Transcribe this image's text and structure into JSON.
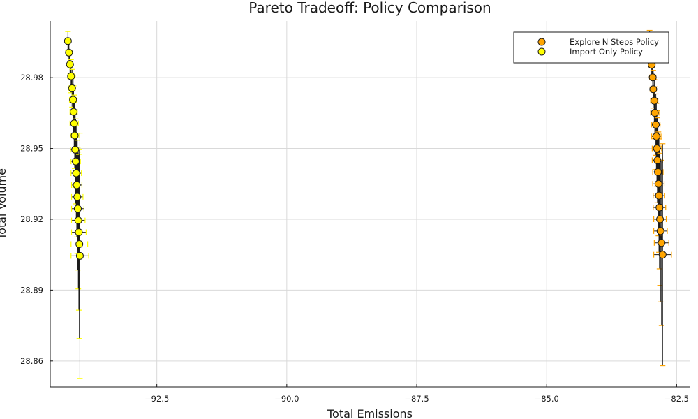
{
  "chart_data": {
    "type": "scatter",
    "title": "Pareto Tradeoff: Policy Comparison",
    "xlabel": "Total Emissions",
    "ylabel": "Total Volume",
    "xlim": [
      -94.55,
      -82.25
    ],
    "ylim": [
      28.849,
      29.004
    ],
    "xticks": [
      -92.5,
      -90.0,
      -87.5,
      -85.0,
      -82.5
    ],
    "xtick_labels": [
      "−92.5",
      "−90.0",
      "−87.5",
      "−85.0",
      "−82.5"
    ],
    "yticks": [
      28.86,
      28.89,
      28.92,
      28.95,
      28.98
    ],
    "ytick_labels": [
      "28.86",
      "28.89",
      "28.92",
      "28.95",
      "28.98"
    ],
    "grid": true,
    "legend_position": "top-right",
    "series": [
      {
        "name": "Explore N Steps Policy",
        "color": "#FFA500",
        "errorbar_color": "#FFA500",
        "points": [
          {
            "x": -83.02,
            "y": 28.996,
            "xerr": 0.04,
            "yerr": 0.004
          },
          {
            "x": -82.98,
            "y": 28.9854,
            "xerr": 0.05,
            "yerr": 0.005
          },
          {
            "x": -82.96,
            "y": 28.9801,
            "xerr": 0.06,
            "yerr": 0.006
          },
          {
            "x": -82.95,
            "y": 28.9751,
            "xerr": 0.06,
            "yerr": 0.008
          },
          {
            "x": -82.93,
            "y": 28.9702,
            "xerr": 0.07,
            "yerr": 0.009
          },
          {
            "x": -82.92,
            "y": 28.9651,
            "xerr": 0.08,
            "yerr": 0.011
          },
          {
            "x": -82.9,
            "y": 28.9601,
            "xerr": 0.08,
            "yerr": 0.013
          },
          {
            "x": -82.89,
            "y": 28.9551,
            "xerr": 0.09,
            "yerr": 0.014
          },
          {
            "x": -82.88,
            "y": 28.95,
            "xerr": 0.09,
            "yerr": 0.016
          },
          {
            "x": -82.87,
            "y": 28.945,
            "xerr": 0.1,
            "yerr": 0.018
          },
          {
            "x": -82.86,
            "y": 28.94,
            "xerr": 0.1,
            "yerr": 0.02
          },
          {
            "x": -82.85,
            "y": 28.935,
            "xerr": 0.11,
            "yerr": 0.022
          },
          {
            "x": -82.84,
            "y": 28.93,
            "xerr": 0.11,
            "yerr": 0.024
          },
          {
            "x": -82.83,
            "y": 28.925,
            "xerr": 0.12,
            "yerr": 0.026
          },
          {
            "x": -82.82,
            "y": 28.92,
            "xerr": 0.12,
            "yerr": 0.028
          },
          {
            "x": -82.81,
            "y": 28.915,
            "xerr": 0.13,
            "yerr": 0.03
          },
          {
            "x": -82.79,
            "y": 28.91,
            "xerr": 0.14,
            "yerr": 0.035
          },
          {
            "x": -82.77,
            "y": 28.905,
            "xerr": 0.17,
            "yerr": 0.047
          }
        ]
      },
      {
        "name": "Import Only Policy",
        "color": "#FFFF00",
        "errorbar_color": "#FFFF00",
        "points": [
          {
            "x": -94.21,
            "y": 28.9955,
            "xerr": 0.04,
            "yerr": 0.004
          },
          {
            "x": -94.19,
            "y": 28.9906,
            "xerr": 0.05,
            "yerr": 0.005
          },
          {
            "x": -94.17,
            "y": 28.9856,
            "xerr": 0.05,
            "yerr": 0.006
          },
          {
            "x": -94.15,
            "y": 28.9806,
            "xerr": 0.06,
            "yerr": 0.007
          },
          {
            "x": -94.13,
            "y": 28.9755,
            "xerr": 0.06,
            "yerr": 0.008
          },
          {
            "x": -94.11,
            "y": 28.9706,
            "xerr": 0.07,
            "yerr": 0.01
          },
          {
            "x": -94.1,
            "y": 28.9655,
            "xerr": 0.07,
            "yerr": 0.011
          },
          {
            "x": -94.09,
            "y": 28.9606,
            "xerr": 0.08,
            "yerr": 0.012
          },
          {
            "x": -94.08,
            "y": 28.9555,
            "xerr": 0.08,
            "yerr": 0.014
          },
          {
            "x": -94.07,
            "y": 28.9495,
            "xerr": 0.09,
            "yerr": 0.016
          },
          {
            "x": -94.06,
            "y": 28.9445,
            "xerr": 0.09,
            "yerr": 0.018
          },
          {
            "x": -94.05,
            "y": 28.9395,
            "xerr": 0.1,
            "yerr": 0.02
          },
          {
            "x": -94.04,
            "y": 28.9345,
            "xerr": 0.1,
            "yerr": 0.022
          },
          {
            "x": -94.03,
            "y": 28.9295,
            "xerr": 0.11,
            "yerr": 0.024
          },
          {
            "x": -94.02,
            "y": 28.9245,
            "xerr": 0.12,
            "yerr": 0.026
          },
          {
            "x": -94.01,
            "y": 28.9195,
            "xerr": 0.13,
            "yerr": 0.029
          },
          {
            "x": -94.0,
            "y": 28.9145,
            "xerr": 0.14,
            "yerr": 0.033
          },
          {
            "x": -93.99,
            "y": 28.9095,
            "xerr": 0.16,
            "yerr": 0.04
          },
          {
            "x": -93.98,
            "y": 28.9045,
            "xerr": 0.17,
            "yerr": 0.052
          }
        ]
      }
    ]
  }
}
